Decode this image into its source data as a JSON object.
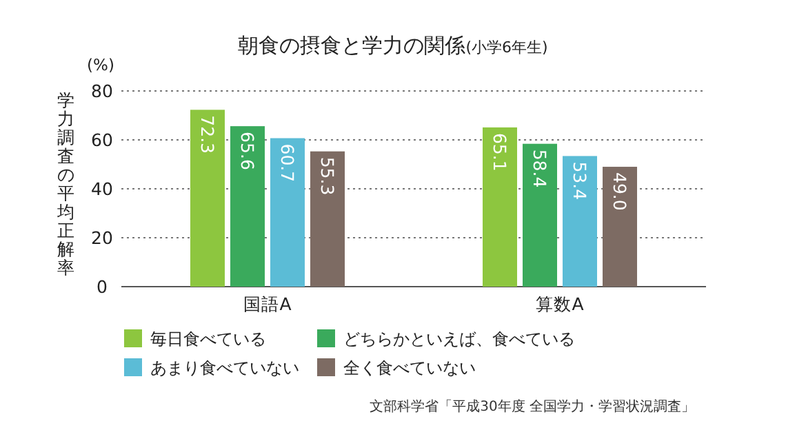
{
  "chart_data": {
    "type": "bar",
    "title": "朝食の摂食と学力の関係",
    "subtitle": "(小学6年生)",
    "ylabel": "学力調査の平均正解率",
    "annotations": [
      "(%)",
      "文部科学省「平成30年度 全国学力・学習状況調査」"
    ],
    "categories": [
      "国語A",
      "算数A"
    ],
    "series": [
      {
        "name": "毎日食べている",
        "color": "#8dc63f",
        "values": [
          72.3,
          65.1
        ],
        "value_labels": [
          "72.3",
          "65.1"
        ]
      },
      {
        "name": "どちらかといえば、食べている",
        "color": "#3aaa5c",
        "values": [
          65.6,
          58.4
        ],
        "value_labels": [
          "65.6",
          "58.4"
        ]
      },
      {
        "name": "あまり食べていない",
        "color": "#5bbcd6",
        "values": [
          60.7,
          53.4
        ],
        "value_labels": [
          "60.7",
          "53.4"
        ]
      },
      {
        "name": "全く食べていない",
        "color": "#7d6b63",
        "values": [
          55.3,
          49.0
        ],
        "value_labels": [
          "55.3",
          "49.0"
        ]
      }
    ],
    "ylim": [
      0,
      80
    ],
    "yticks": [
      0,
      20,
      40,
      60,
      80
    ],
    "grid": "y",
    "legend": "bottom"
  }
}
